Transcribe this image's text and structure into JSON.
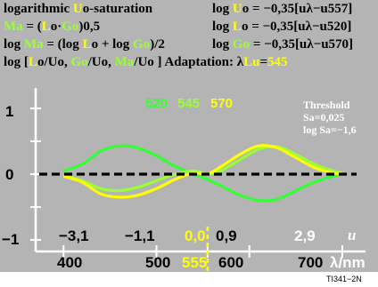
{
  "header": {
    "l1a": "logarithmic ",
    "l1b": "U",
    "l1c": "o-saturation",
    "r1a": "log ",
    "r1b": "U",
    "r1c": "o = −0,35[uλ−u557]",
    "l2a": "Ma",
    "l2b": " = (",
    "l2c": "L",
    "l2d": "o·",
    "l2e": "Go",
    "l2f": ")0,5",
    "r2a": "log ",
    "r2b": "L",
    "r2c": "o = −0,35[uλ−u520]",
    "l3a": "log ",
    "l3b": "Ma",
    "l3c": " = (log ",
    "l3d": "L",
    "l3e": "o + log ",
    "l3f": "Go",
    "l3g": ")/2",
    "r3a": "log ",
    "r3b": "Go",
    "r3c": " = −0,35[uλ−u570]",
    "l4a": "log [",
    "l4b": "L",
    "l4c": "o/Uo, ",
    "l4d": "Go",
    "l4e": "/Uo, ",
    "l4f": "Ma",
    "l4g": "/Uo ]  Adaptation: λ",
    "l4h": "Lu",
    "l4i": "=",
    "l4j": "545"
  },
  "legend": [
    "520",
    "545",
    "570"
  ],
  "threshold": {
    "title": "Threshold",
    "sa": "Sa=0,025",
    "log_sa": "log Sa=−1,6"
  },
  "axes": {
    "y_ticks": [
      "1",
      "0",
      "−1"
    ],
    "u_ticks": [
      "−3,1",
      "−1,1",
      "0,0",
      "0,9",
      "2,9"
    ],
    "u_label": "u",
    "x_ticks": [
      "400",
      "500",
      "555",
      "600",
      "700"
    ],
    "x_label": "λ/nm"
  },
  "figure_code": "TI341−2N",
  "colors": {
    "background": "#b4b4b4",
    "series_520": "#33ff33",
    "series_545": "#99ff33",
    "series_570": "#ffff00",
    "threshold_line": "#000000"
  },
  "chart_data": {
    "type": "line",
    "xlabel": "λ/nm",
    "ylim": [
      -1,
      1
    ],
    "xlim": [
      370,
      725
    ],
    "x_ticks": [
      400,
      500,
      555,
      600,
      700
    ],
    "threshold": {
      "log_value": -1.6,
      "style": "dashed-black"
    },
    "series": [
      {
        "name": "520",
        "color": "#33ff33",
        "x": [
          400,
          420,
          440,
          460,
          480,
          500,
          520,
          540,
          555,
          570,
          590,
          610,
          630,
          650,
          670,
          690,
          700
        ],
        "y": [
          0.05,
          0.15,
          0.35,
          0.43,
          0.4,
          0.28,
          0.12,
          0.0,
          -0.08,
          -0.18,
          -0.32,
          -0.4,
          -0.38,
          -0.25,
          -0.12,
          -0.03,
          0.0
        ]
      },
      {
        "name": "545",
        "color": "#99ff33",
        "x": [
          400,
          420,
          440,
          460,
          480,
          500,
          520,
          540,
          555,
          570,
          590,
          610,
          630,
          650,
          670,
          690,
          700
        ],
        "y": [
          -0.02,
          -0.1,
          -0.22,
          -0.25,
          -0.2,
          -0.1,
          0.0,
          0.05,
          0.0,
          0.06,
          0.22,
          0.38,
          0.42,
          0.3,
          0.15,
          0.05,
          0.02
        ]
      },
      {
        "name": "570",
        "color": "#ffff00",
        "x": [
          400,
          420,
          440,
          460,
          480,
          500,
          520,
          540,
          555,
          570,
          590,
          610,
          630,
          650,
          670,
          690,
          700
        ],
        "y": [
          -0.03,
          -0.12,
          -0.3,
          -0.35,
          -0.32,
          -0.22,
          -0.08,
          0.02,
          0.0,
          0.12,
          0.3,
          0.43,
          0.4,
          0.25,
          0.1,
          0.02,
          0.0
        ]
      }
    ]
  }
}
